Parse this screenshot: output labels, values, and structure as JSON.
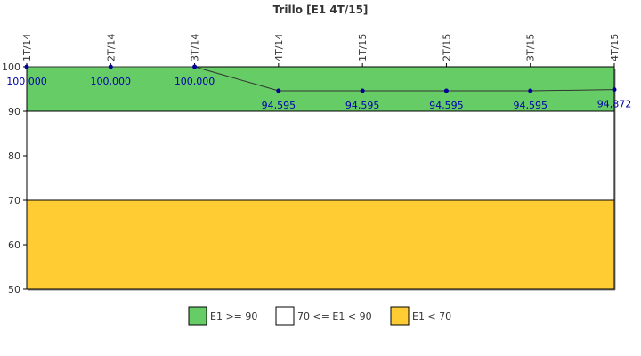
{
  "chart_data": {
    "type": "line",
    "title": "Trillo [E1 4T/15]",
    "categories": [
      "1T/14",
      "2T/14",
      "3T/14",
      "4T/14",
      "1T/15",
      "2T/15",
      "3T/15",
      "4T/15"
    ],
    "values": [
      100,
      100,
      100,
      94.595,
      94.595,
      94.595,
      94.595,
      94.872
    ],
    "value_labels": [
      "100,000",
      "100,000",
      "100,000",
      "94,595",
      "94,595",
      "94,595",
      "94,595",
      "94,872"
    ],
    "ylim": [
      50,
      100
    ],
    "yticks": [
      50,
      60,
      70,
      80,
      90,
      100
    ],
    "bands": [
      {
        "label": "E1 >= 90",
        "from": 90,
        "to": 100,
        "color": "#66cc66"
      },
      {
        "label": "70 <= E1 < 90",
        "from": 70,
        "to": 90,
        "color": "#ffffff"
      },
      {
        "label": "E1 < 70",
        "from": 50,
        "to": 70,
        "color": "#ffcc33"
      }
    ],
    "line_color": "#333333",
    "marker_color": "#000099",
    "label_color": "#0000aa",
    "legend_position": "bottom"
  }
}
